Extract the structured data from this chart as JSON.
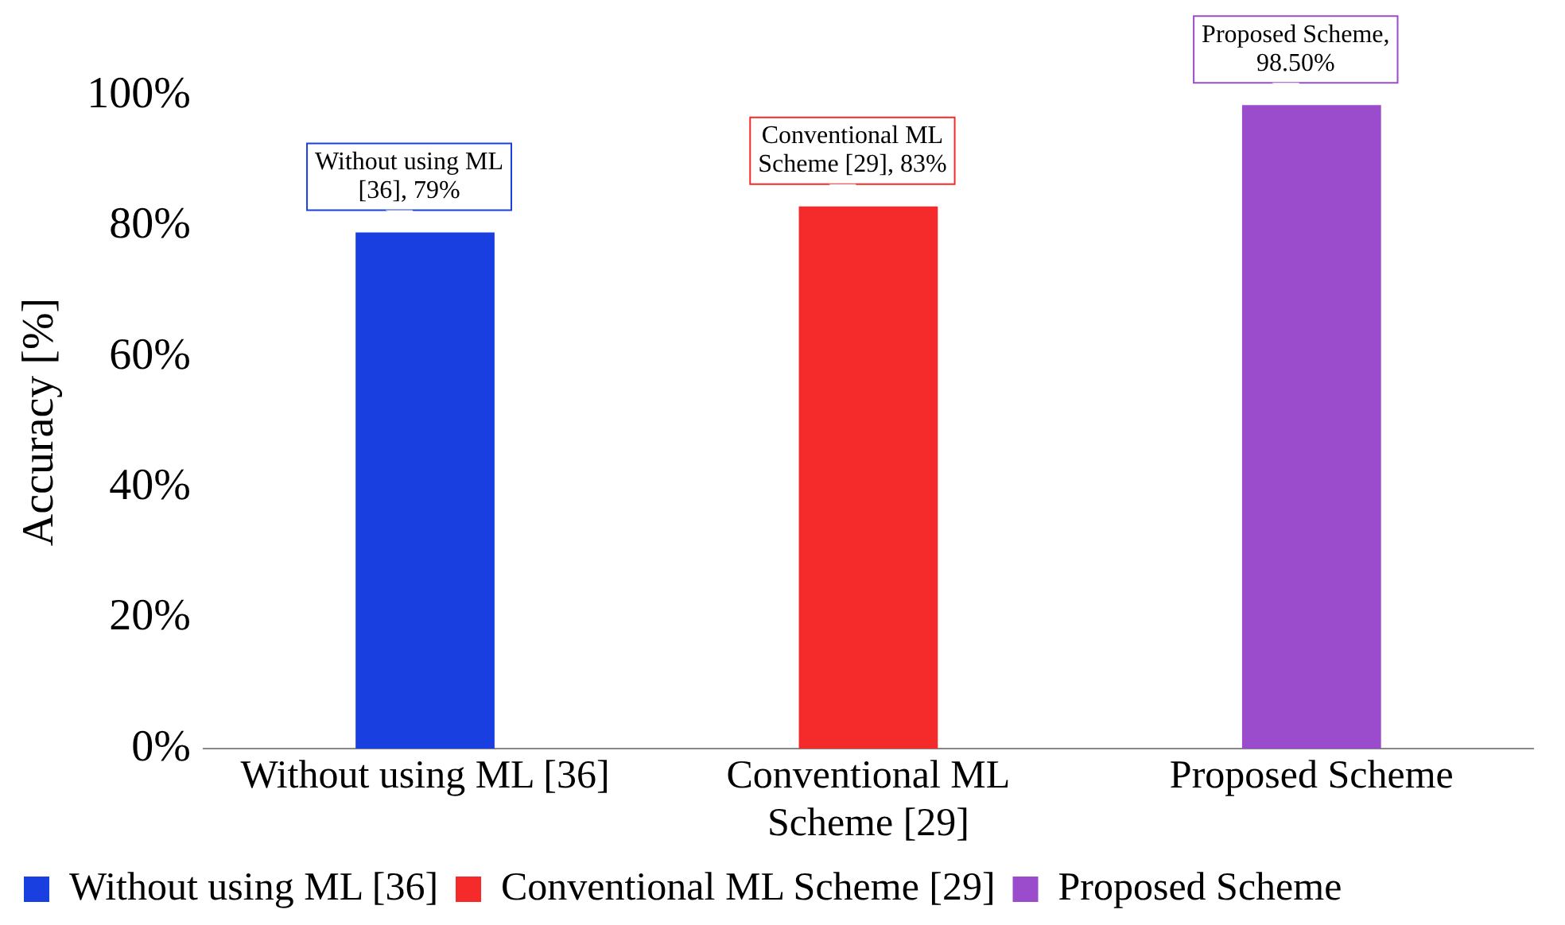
{
  "chart_data": {
    "type": "bar",
    "ylabel": "Accuracy [%]",
    "categories": [
      "Without using ML [36]",
      "Conventional ML Scheme [29]",
      "Proposed Scheme"
    ],
    "series": [
      {
        "name": "Without using ML [36]",
        "color": "#1a3fe0",
        "values": [
          79,
          null,
          null
        ]
      },
      {
        "name": "Conventional ML Scheme [29]",
        "color": "#f52a2a",
        "values": [
          null,
          83,
          null
        ]
      },
      {
        "name": "Proposed Scheme",
        "color": "#9a4ccc",
        "values": [
          null,
          null,
          98.5
        ]
      }
    ],
    "ylim": [
      0,
      100
    ],
    "yticks": [
      {
        "value": 0,
        "label": "0%"
      },
      {
        "value": 20,
        "label": "20%"
      },
      {
        "value": 40,
        "label": "40%"
      },
      {
        "value": 60,
        "label": "60%"
      },
      {
        "value": 80,
        "label": "80%"
      },
      {
        "value": 100,
        "label": "100%"
      }
    ],
    "grid": false,
    "legend": "bottom",
    "annotations": [
      {
        "text": "Without using ML [36], 79%",
        "x": "Without using ML [36]",
        "y": 79
      },
      {
        "text": "Conventional ML Scheme [29], 83%",
        "x": "Conventional ML Scheme [29]",
        "y": 83
      },
      {
        "text": "Proposed Scheme, 98.50%",
        "x": "Proposed Scheme",
        "y": 98.5
      }
    ]
  }
}
